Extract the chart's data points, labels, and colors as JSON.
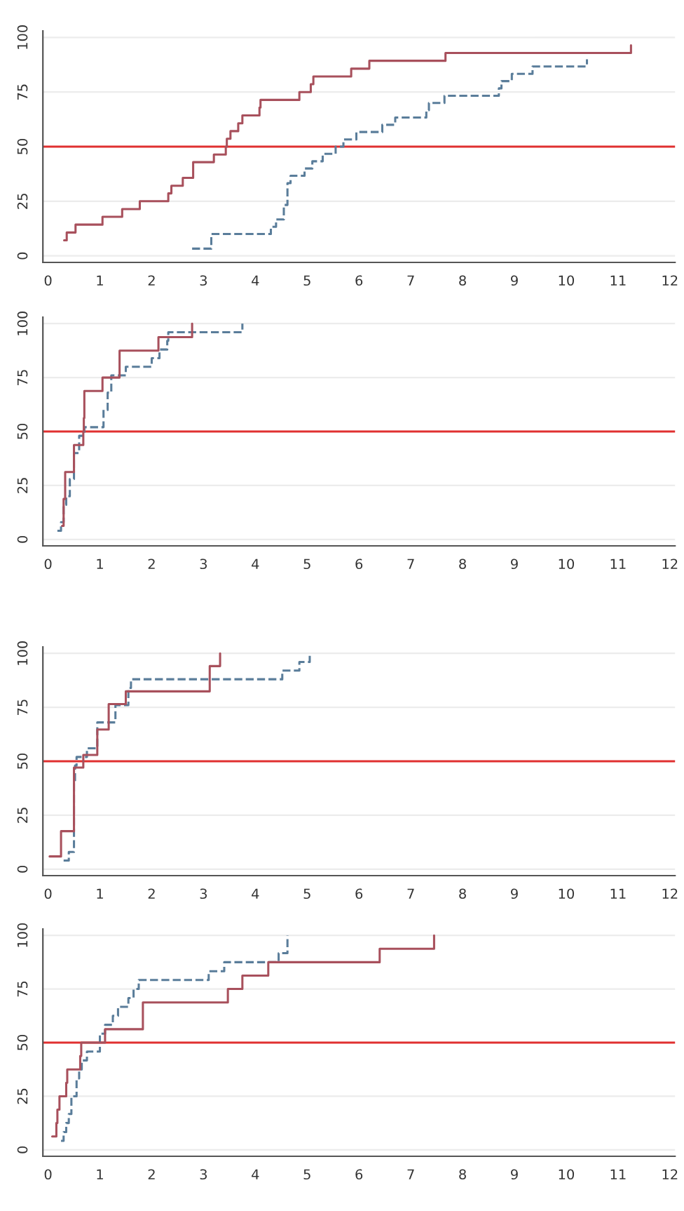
{
  "chart_data": [
    {
      "type": "step",
      "xlim": [
        -0.1,
        12.1
      ],
      "ylim": [
        -3,
        103
      ],
      "xticks": [
        0,
        1,
        2,
        3,
        4,
        5,
        6,
        7,
        8,
        9,
        10,
        11,
        12
      ],
      "yticks": [
        0,
        25,
        50,
        75,
        100
      ],
      "grid": "y",
      "line_style": "solid",
      "ref_lines": [
        {
          "axis": "y",
          "value": 50,
          "color": "#e03030"
        }
      ],
      "series": [
        {
          "color": "#5a7d9a",
          "line_style": "dashed",
          "x": [
            2.78,
            3.15,
            4.3,
            4.4,
            4.55,
            4.62,
            4.68,
            4.95,
            5.1,
            5.3,
            5.55,
            5.7,
            5.95,
            6.45,
            6.7,
            7.3,
            7.35,
            7.65,
            8.7,
            8.75,
            8.95,
            9.35,
            10.4
          ],
          "values": [
            3.3,
            10,
            13.3,
            16.7,
            23.3,
            33.3,
            36.7,
            40,
            43.3,
            46.7,
            50,
            53.3,
            56.7,
            60,
            63.3,
            66.7,
            70,
            73.3,
            76.7,
            80,
            83.3,
            86.7,
            90
          ]
        },
        {
          "color": "#a8505c",
          "line_style": "solid",
          "x": [
            0.31,
            0.36,
            0.53,
            1.05,
            1.43,
            1.77,
            2.32,
            2.38,
            2.6,
            2.8,
            3.2,
            3.43,
            3.45,
            3.52,
            3.67,
            3.75,
            4.08,
            4.1,
            4.85,
            5.07,
            5.12,
            5.85,
            6.2,
            7.67,
            11.25
          ],
          "values": [
            7.1,
            10.7,
            14.3,
            17.9,
            21.4,
            25,
            28.6,
            32.1,
            35.7,
            42.9,
            46.4,
            50,
            53.6,
            57.1,
            60.7,
            64.3,
            67.9,
            71.4,
            75,
            78.6,
            82.1,
            85.7,
            89.3,
            92.9,
            96.4
          ]
        }
      ]
    },
    {
      "type": "step",
      "xlim": [
        -0.1,
        12.1
      ],
      "ylim": [
        -3,
        103
      ],
      "xticks": [
        0,
        1,
        2,
        3,
        4,
        5,
        6,
        7,
        8,
        9,
        10,
        11,
        12
      ],
      "yticks": [
        0,
        25,
        50,
        75,
        100
      ],
      "grid": "y",
      "line_style": "solid",
      "ref_lines": [
        {
          "axis": "y",
          "value": 50,
          "color": "#e03030"
        }
      ],
      "series": [
        {
          "color": "#5a7d9a",
          "line_style": "dashed",
          "x": [
            0.18,
            0.25,
            0.3,
            0.35,
            0.42,
            0.5,
            0.6,
            0.7,
            1.07,
            1.15,
            1.22,
            1.5,
            2.0,
            2.15,
            2.3,
            2.32,
            3.75
          ],
          "values": [
            4,
            8,
            16,
            20,
            28,
            40,
            48,
            52,
            60,
            68,
            76,
            80,
            84,
            88,
            92,
            96,
            100
          ]
        },
        {
          "color": "#a8505c",
          "line_style": "solid",
          "x": [
            0.27,
            0.3,
            0.33,
            0.5,
            0.68,
            0.69,
            0.7,
            1.05,
            1.38,
            2.13,
            2.78
          ],
          "values": [
            6.25,
            18.75,
            31.25,
            43.75,
            50,
            56.25,
            68.75,
            75,
            87.5,
            93.75,
            100
          ]
        }
      ]
    },
    {
      "type": "step",
      "xlim": [
        -0.1,
        12.1
      ],
      "ylim": [
        -3,
        103
      ],
      "xticks": [
        0,
        1,
        2,
        3,
        4,
        5,
        6,
        7,
        8,
        9,
        10,
        11,
        12
      ],
      "yticks": [
        0,
        25,
        50,
        75,
        100
      ],
      "grid": "y",
      "line_style": "solid",
      "ref_lines": [
        {
          "axis": "y",
          "value": 50,
          "color": "#e03030"
        }
      ],
      "series": [
        {
          "color": "#5a7d9a",
          "line_style": "dashed",
          "x": [
            0.3,
            0.4,
            0.5,
            0.52,
            0.55,
            0.75,
            0.95,
            1.3,
            1.55,
            1.6,
            4.52,
            4.85,
            5.05
          ],
          "values": [
            4,
            8,
            40,
            48,
            52,
            56,
            68,
            76,
            84,
            88,
            92,
            96,
            100
          ]
        },
        {
          "color": "#a8505c",
          "line_style": "solid",
          "x": [
            0.03,
            0.25,
            0.5,
            0.68,
            0.95,
            1.17,
            1.5,
            3.12,
            3.32
          ],
          "values": [
            5.9,
            17.6,
            47.1,
            52.9,
            64.7,
            76.5,
            82.4,
            94.1,
            100
          ]
        }
      ]
    },
    {
      "type": "step",
      "xlim": [
        -0.1,
        12.1
      ],
      "ylim": [
        -3,
        103
      ],
      "xticks": [
        0,
        1,
        2,
        3,
        4,
        5,
        6,
        7,
        8,
        9,
        10,
        11,
        12
      ],
      "yticks": [
        0,
        25,
        50,
        75,
        100
      ],
      "grid": "y",
      "line_style": "solid",
      "ref_lines": [
        {
          "axis": "y",
          "value": 50,
          "color": "#e03030"
        }
      ],
      "series": [
        {
          "color": "#5a7d9a",
          "line_style": "dashed",
          "x": [
            0.25,
            0.3,
            0.35,
            0.4,
            0.45,
            0.55,
            0.6,
            0.65,
            0.75,
            1.0,
            1.1,
            1.25,
            1.35,
            1.55,
            1.65,
            1.75,
            3.1,
            3.4,
            4.45,
            4.62
          ],
          "values": [
            4.2,
            8.3,
            12.5,
            16.7,
            25,
            33.3,
            37.5,
            41.7,
            45.8,
            54.2,
            58.3,
            62.5,
            66.7,
            70.8,
            75,
            79.2,
            83.3,
            87.5,
            91.7,
            100
          ]
        },
        {
          "color": "#a8505c",
          "line_style": "solid",
          "x": [
            0.08,
            0.16,
            0.18,
            0.22,
            0.35,
            0.37,
            0.62,
            0.64,
            1.1,
            1.83,
            3.47,
            3.75,
            4.25,
            6.4,
            7.45
          ],
          "values": [
            6.25,
            12.5,
            18.75,
            25,
            31.25,
            37.5,
            43.75,
            50,
            56.25,
            68.75,
            75,
            81.25,
            87.5,
            93.75,
            100
          ]
        }
      ]
    }
  ]
}
